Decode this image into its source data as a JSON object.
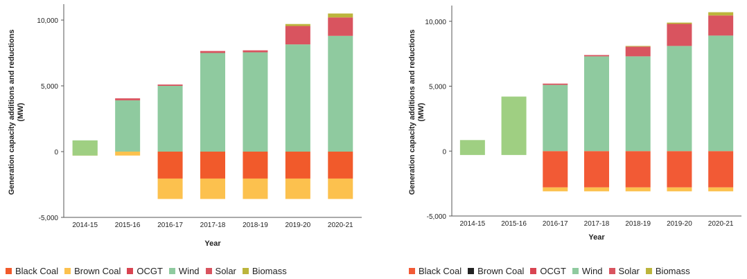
{
  "chart_data": [
    {
      "type": "bar",
      "stacked": true,
      "title": "",
      "xlabel": "Year",
      "ylabel": "Generation capacity additions and reductions (MW)",
      "ylim": [
        -5000,
        11000
      ],
      "yticks": [
        -5000,
        0,
        5000,
        10000
      ],
      "ytick_labels": [
        "-5,000",
        "0",
        "5,000",
        "10,000"
      ],
      "grid": false,
      "legend_position": "bottom",
      "categories": [
        "2014-15",
        "2015-16",
        "2016-17",
        "2017-18",
        "2018-19",
        "2019-20",
        "2020-21"
      ],
      "series": [
        {
          "name": "Black Coal",
          "color": "#f15a2b",
          "values": [
            0,
            0,
            -2050,
            -2050,
            -2050,
            -2050,
            -2050
          ]
        },
        {
          "name": "Brown Coal",
          "color": "#fcc14e",
          "values": [
            -300,
            -300,
            -1550,
            -1550,
            -1550,
            -1550,
            -1550
          ]
        },
        {
          "name": "OCGT",
          "color": "#d94451",
          "values": [
            0,
            0,
            0,
            0,
            0,
            0,
            0
          ]
        },
        {
          "name": "Wind",
          "color": "#8fca9f",
          "values": [
            850,
            3900,
            5000,
            7500,
            7550,
            8150,
            8800
          ]
        },
        {
          "name": "Solar",
          "color": "#d9545f",
          "values": [
            0,
            150,
            100,
            150,
            150,
            1400,
            1400
          ]
        },
        {
          "name": "Biomass",
          "color": "#bcb53c",
          "values": [
            0,
            0,
            0,
            0,
            0,
            150,
            300
          ]
        }
      ],
      "overlay_bars": [
        {
          "category": "2014-15",
          "bottom": -300,
          "top": 850,
          "color": "#9fcf82"
        }
      ]
    },
    {
      "type": "bar",
      "stacked": true,
      "title": "",
      "xlabel": "Year",
      "ylabel": "Generation capacity additions and reductions (MW)",
      "ylim": [
        -5000,
        11000
      ],
      "yticks": [
        -5000,
        0,
        5000,
        10000
      ],
      "ytick_labels": [
        "-5,000",
        "0",
        "5,000",
        "10,000"
      ],
      "grid": false,
      "legend_position": "bottom",
      "categories": [
        "2014-15",
        "2015-16",
        "2016-17",
        "2017-18",
        "2018-19",
        "2019-20",
        "2020-21"
      ],
      "series": [
        {
          "name": "Black Coal",
          "color": "#f25a35",
          "values": [
            0,
            0,
            -2800,
            -2800,
            -2800,
            -2800,
            -2800
          ]
        },
        {
          "name": "Brown Coal",
          "color": "#222222",
          "values": [
            0,
            0,
            0,
            0,
            0,
            0,
            0
          ]
        },
        {
          "name": "OCGT",
          "color": "#d94451",
          "values": [
            0,
            0,
            0,
            0,
            0,
            0,
            0
          ]
        },
        {
          "name": "Wind",
          "color": "#8fca9f",
          "values": [
            0,
            0,
            5100,
            7300,
            7300,
            8100,
            8900
          ]
        },
        {
          "name": "Solar",
          "color": "#d9545f",
          "values": [
            0,
            0,
            100,
            100,
            750,
            1700,
            1550
          ]
        },
        {
          "name": "Biomass",
          "color": "#bcb53c",
          "values": [
            0,
            0,
            0,
            0,
            50,
            100,
            250
          ]
        }
      ],
      "extra_bands": [
        {
          "category": "2016-17",
          "bottom": -3100,
          "top": -2800,
          "color": "#fcc14e"
        },
        {
          "category": "2017-18",
          "bottom": -3100,
          "top": -2800,
          "color": "#fcc14e"
        },
        {
          "category": "2018-19",
          "bottom": -3100,
          "top": -2800,
          "color": "#fcc14e"
        },
        {
          "category": "2019-20",
          "bottom": -3100,
          "top": -2800,
          "color": "#fcc14e"
        },
        {
          "category": "2020-21",
          "bottom": -3100,
          "top": -2800,
          "color": "#fcc14e"
        }
      ],
      "overlay_bars": [
        {
          "category": "2014-15",
          "bottom": -300,
          "top": 850,
          "color": "#9fcf82"
        },
        {
          "category": "2015-16",
          "bottom": -300,
          "top": 4200,
          "color": "#9fcf82"
        }
      ]
    }
  ]
}
